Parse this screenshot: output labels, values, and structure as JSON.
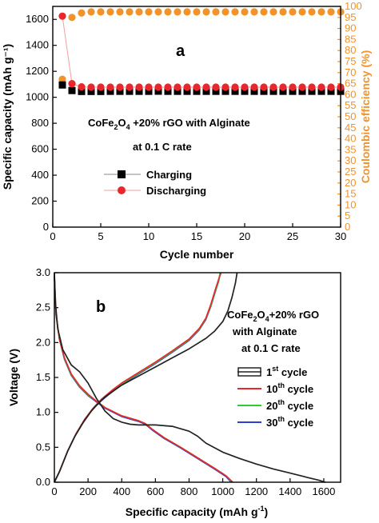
{
  "chart_data": [
    {
      "type": "scatter",
      "panel_label": "a",
      "xlabel": "Cycle number",
      "ylabel": "Specific capacity (mAh g⁻¹)",
      "y2label": "Coulombic efficiency (%)",
      "xlim": [
        0,
        30
      ],
      "ylim": [
        0,
        1700
      ],
      "y2lim": [
        0,
        100
      ],
      "x_ticks": [
        0,
        5,
        10,
        15,
        20,
        25,
        30
      ],
      "y_ticks": [
        0,
        200,
        400,
        600,
        800,
        1000,
        1200,
        1400,
        1600
      ],
      "y2_ticks": [
        0,
        5,
        10,
        15,
        20,
        25,
        30,
        35,
        40,
        45,
        50,
        55,
        60,
        65,
        70,
        75,
        80,
        85,
        90,
        95,
        100
      ],
      "y2_color": "#f0932b",
      "annotation": [
        "CoFe₂O₄ +20% rGO with Alginate",
        "at 0.1 C rate"
      ],
      "legend": [
        "Charging",
        "Discharging"
      ],
      "series": [
        {
          "name": "Charging",
          "axis": "left",
          "marker": "square",
          "color": "#000000",
          "x": [
            1,
            2,
            3,
            4,
            5,
            6,
            7,
            8,
            9,
            10,
            11,
            12,
            13,
            14,
            15,
            16,
            17,
            18,
            19,
            20,
            21,
            22,
            23,
            24,
            25,
            26,
            27,
            28,
            29,
            30
          ],
          "y": [
            1095,
            1052,
            1045,
            1045,
            1045,
            1046,
            1046,
            1046,
            1046,
            1046,
            1047,
            1046,
            1046,
            1046,
            1046,
            1046,
            1046,
            1046,
            1046,
            1046,
            1046,
            1046,
            1046,
            1046,
            1046,
            1046,
            1046,
            1046,
            1046,
            1046
          ]
        },
        {
          "name": "Discharging",
          "axis": "left",
          "marker": "circle",
          "color": "#e8262b",
          "x": [
            1,
            2,
            3,
            4,
            5,
            6,
            7,
            8,
            9,
            10,
            11,
            12,
            13,
            14,
            15,
            16,
            17,
            18,
            19,
            20,
            21,
            22,
            23,
            24,
            25,
            26,
            27,
            28,
            29,
            30
          ],
          "y": [
            1625,
            1105,
            1080,
            1078,
            1078,
            1078,
            1078,
            1078,
            1078,
            1078,
            1078,
            1078,
            1078,
            1078,
            1078,
            1078,
            1078,
            1078,
            1078,
            1078,
            1078,
            1078,
            1078,
            1078,
            1078,
            1078,
            1078,
            1078,
            1078,
            1078
          ]
        },
        {
          "name": "Coulombic efficiency",
          "axis": "right",
          "marker": "circle",
          "color": "#f0932b",
          "x": [
            1,
            2,
            3,
            4,
            5,
            6,
            7,
            8,
            9,
            10,
            11,
            12,
            13,
            14,
            15,
            16,
            17,
            18,
            19,
            20,
            21,
            22,
            23,
            24,
            25,
            26,
            27,
            28,
            29,
            30
          ],
          "y": [
            67,
            95,
            97,
            97.5,
            97.5,
            97.5,
            97.5,
            97.5,
            97.5,
            97.5,
            97.5,
            97.5,
            97.5,
            97.5,
            97.5,
            97.5,
            97.5,
            97.5,
            97.5,
            97.5,
            97.5,
            97.5,
            97.5,
            97.5,
            97.5,
            97.5,
            97.5,
            97.5,
            97.5,
            97.5
          ]
        }
      ]
    },
    {
      "type": "line",
      "panel_label": "b",
      "xlabel": "Specific capacity (mAh g⁻¹)",
      "ylabel": "Voltage (V)",
      "xlim": [
        0,
        1700
      ],
      "ylim": [
        0,
        3.0
      ],
      "x_ticks": [
        0,
        200,
        400,
        600,
        800,
        1000,
        1200,
        1400,
        1600
      ],
      "y_ticks": [
        0.0,
        0.5,
        1.0,
        1.5,
        2.0,
        2.5,
        3.0
      ],
      "annotation": [
        "CoFe₂O₄+20% rGO",
        "with Alginate",
        "at 0.1 C rate"
      ],
      "legend": [
        "1st cycle",
        "10th cycle",
        "20th cycle",
        "30th cycle"
      ],
      "series": [
        {
          "name": "1st cycle",
          "color": "#222222",
          "discharge": [
            [
              0,
              3.0
            ],
            [
              5,
              2.6
            ],
            [
              20,
              2.2
            ],
            [
              50,
              1.9
            ],
            [
              100,
              1.68
            ],
            [
              150,
              1.58
            ],
            [
              200,
              1.42
            ],
            [
              250,
              1.2
            ],
            [
              300,
              1.02
            ],
            [
              350,
              0.91
            ],
            [
              400,
              0.86
            ],
            [
              450,
              0.83
            ],
            [
              500,
              0.82
            ],
            [
              600,
              0.82
            ],
            [
              700,
              0.8
            ],
            [
              800,
              0.73
            ],
            [
              850,
              0.66
            ],
            [
              900,
              0.56
            ],
            [
              1000,
              0.43
            ],
            [
              1100,
              0.34
            ],
            [
              1200,
              0.26
            ],
            [
              1300,
              0.19
            ],
            [
              1400,
              0.13
            ],
            [
              1500,
              0.07
            ],
            [
              1570,
              0.03
            ],
            [
              1610,
              0.0
            ]
          ],
          "charge": [
            [
              0,
              0.0
            ],
            [
              30,
              0.15
            ],
            [
              80,
              0.45
            ],
            [
              120,
              0.65
            ],
            [
              170,
              0.85
            ],
            [
              220,
              1.02
            ],
            [
              250,
              1.1
            ],
            [
              300,
              1.22
            ],
            [
              400,
              1.39
            ],
            [
              500,
              1.52
            ],
            [
              600,
              1.65
            ],
            [
              700,
              1.78
            ],
            [
              800,
              1.91
            ],
            [
              900,
              2.06
            ],
            [
              950,
              2.16
            ],
            [
              1000,
              2.3
            ],
            [
              1030,
              2.45
            ],
            [
              1055,
              2.65
            ],
            [
              1075,
              2.85
            ],
            [
              1085,
              3.0
            ]
          ]
        },
        {
          "name": "10th cycle",
          "color": "#e8262b",
          "discharge": [
            [
              0,
              2.95
            ],
            [
              10,
              2.4
            ],
            [
              30,
              2.05
            ],
            [
              60,
              1.78
            ],
            [
              100,
              1.55
            ],
            [
              150,
              1.38
            ],
            [
              200,
              1.26
            ],
            [
              250,
              1.16
            ],
            [
              300,
              1.07
            ],
            [
              400,
              0.95
            ],
            [
              500,
              0.88
            ],
            [
              540,
              0.84
            ],
            [
              580,
              0.76
            ],
            [
              650,
              0.64
            ],
            [
              750,
              0.5
            ],
            [
              850,
              0.35
            ],
            [
              950,
              0.2
            ],
            [
              1020,
              0.09
            ],
            [
              1060,
              0.0
            ]
          ],
          "charge": [
            [
              0,
              0.0
            ],
            [
              30,
              0.15
            ],
            [
              80,
              0.45
            ],
            [
              130,
              0.7
            ],
            [
              180,
              0.9
            ],
            [
              230,
              1.06
            ],
            [
              280,
              1.19
            ],
            [
              350,
              1.33
            ],
            [
              400,
              1.42
            ],
            [
              500,
              1.57
            ],
            [
              600,
              1.72
            ],
            [
              700,
              1.88
            ],
            [
              800,
              2.05
            ],
            [
              860,
              2.2
            ],
            [
              900,
              2.35
            ],
            [
              930,
              2.55
            ],
            [
              955,
              2.75
            ],
            [
              975,
              2.9
            ],
            [
              990,
              3.0
            ]
          ]
        },
        {
          "name": "20th cycle",
          "color": "#2ecc2e",
          "discharge": [
            [
              0,
              2.95
            ],
            [
              10,
              2.4
            ],
            [
              30,
              2.05
            ],
            [
              60,
              1.77
            ],
            [
              100,
              1.54
            ],
            [
              150,
              1.37
            ],
            [
              200,
              1.25
            ],
            [
              250,
              1.16
            ],
            [
              300,
              1.07
            ],
            [
              400,
              0.95
            ],
            [
              500,
              0.88
            ],
            [
              540,
              0.84
            ],
            [
              580,
              0.76
            ],
            [
              650,
              0.64
            ],
            [
              750,
              0.5
            ],
            [
              850,
              0.35
            ],
            [
              950,
              0.2
            ],
            [
              1020,
              0.09
            ],
            [
              1055,
              0.0
            ]
          ],
          "charge": [
            [
              0,
              0.0
            ],
            [
              30,
              0.15
            ],
            [
              80,
              0.45
            ],
            [
              130,
              0.7
            ],
            [
              180,
              0.9
            ],
            [
              230,
              1.05
            ],
            [
              280,
              1.18
            ],
            [
              350,
              1.32
            ],
            [
              400,
              1.41
            ],
            [
              500,
              1.56
            ],
            [
              600,
              1.71
            ],
            [
              700,
              1.87
            ],
            [
              800,
              2.04
            ],
            [
              860,
              2.19
            ],
            [
              900,
              2.34
            ],
            [
              930,
              2.53
            ],
            [
              955,
              2.73
            ],
            [
              975,
              2.88
            ],
            [
              985,
              3.0
            ]
          ]
        },
        {
          "name": "30th cycle",
          "color": "#2f3fd0",
          "discharge": [
            [
              0,
              2.95
            ],
            [
              10,
              2.4
            ],
            [
              30,
              2.05
            ],
            [
              60,
              1.76
            ],
            [
              100,
              1.53
            ],
            [
              150,
              1.36
            ],
            [
              200,
              1.24
            ],
            [
              250,
              1.15
            ],
            [
              300,
              1.06
            ],
            [
              400,
              0.94
            ],
            [
              500,
              0.87
            ],
            [
              540,
              0.83
            ],
            [
              580,
              0.75
            ],
            [
              650,
              0.63
            ],
            [
              750,
              0.49
            ],
            [
              850,
              0.34
            ],
            [
              950,
              0.19
            ],
            [
              1020,
              0.08
            ],
            [
              1050,
              0.0
            ]
          ],
          "charge": [
            [
              0,
              0.0
            ],
            [
              30,
              0.15
            ],
            [
              80,
              0.45
            ],
            [
              130,
              0.7
            ],
            [
              180,
              0.9
            ],
            [
              230,
              1.05
            ],
            [
              280,
              1.17
            ],
            [
              350,
              1.31
            ],
            [
              400,
              1.4
            ],
            [
              500,
              1.55
            ],
            [
              600,
              1.7
            ],
            [
              700,
              1.86
            ],
            [
              800,
              2.03
            ],
            [
              860,
              2.18
            ],
            [
              900,
              2.33
            ],
            [
              930,
              2.52
            ],
            [
              955,
              2.72
            ],
            [
              975,
              2.87
            ],
            [
              985,
              3.0
            ]
          ]
        }
      ]
    }
  ]
}
